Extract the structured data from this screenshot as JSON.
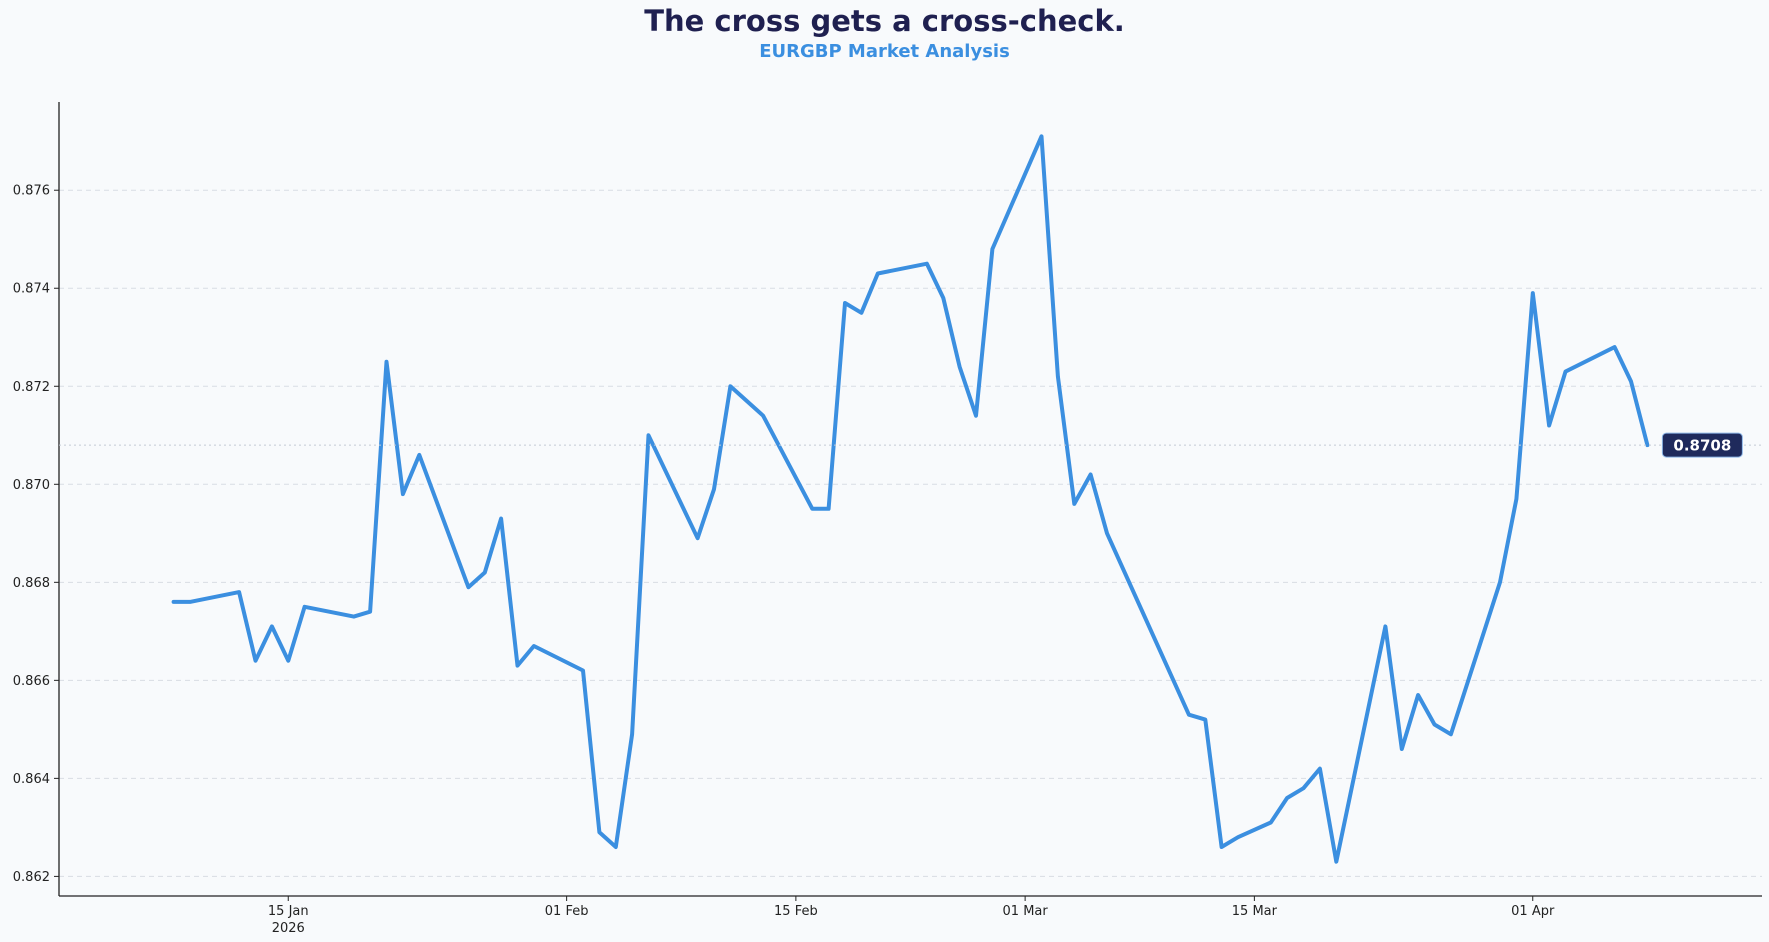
{
  "title": "The cross gets a cross-check.",
  "subtitle": "EURGBP Market Analysis",
  "colors": {
    "line": "#3b8fe0",
    "title": "#1f2050",
    "subtitle": "#3b8fe0",
    "grid": "#d7dde3",
    "badge_bg": "#1f2a5c",
    "badge_text": "#ffffff",
    "background": "#f8fafc"
  },
  "chart_data": {
    "type": "line",
    "title": "The cross gets a cross-check.",
    "subtitle": "EURGBP Market Analysis",
    "xlabel": "",
    "ylabel": "",
    "grid": "horizontal dashed",
    "ylim": [
      0.8616,
      0.8778
    ],
    "xlim": [
      "2026-01-01",
      "2026-04-15"
    ],
    "y_ticks": [
      "0.862",
      "0.864",
      "0.866",
      "0.868",
      "0.870",
      "0.872",
      "0.874",
      "0.876"
    ],
    "x_ticks": [
      {
        "date": "2026-01-15",
        "label": "15 Jan",
        "sublabel": "2026"
      },
      {
        "date": "2026-02-01",
        "label": "01 Feb",
        "sublabel": ""
      },
      {
        "date": "2026-02-15",
        "label": "15 Feb",
        "sublabel": ""
      },
      {
        "date": "2026-03-01",
        "label": "01 Mar",
        "sublabel": ""
      },
      {
        "date": "2026-03-15",
        "label": "15 Mar",
        "sublabel": ""
      },
      {
        "date": "2026-04-01",
        "label": "01 Apr",
        "sublabel": ""
      }
    ],
    "last_value_label": "0.8708",
    "series": [
      {
        "points": [
          [
            "2026-01-08",
            0.8676
          ],
          [
            "2026-01-09",
            0.8676
          ],
          [
            "2026-01-12",
            0.8678
          ],
          [
            "2026-01-13",
            0.8664
          ],
          [
            "2026-01-14",
            0.8671
          ],
          [
            "2026-01-15",
            0.8664
          ],
          [
            "2026-01-16",
            0.8675
          ],
          [
            "2026-01-19",
            0.8673
          ],
          [
            "2026-01-20",
            0.8674
          ],
          [
            "2026-01-21",
            0.8725
          ],
          [
            "2026-01-22",
            0.8698
          ],
          [
            "2026-01-23",
            0.8706
          ],
          [
            "2026-01-26",
            0.8679
          ],
          [
            "2026-01-27",
            0.8682
          ],
          [
            "2026-01-28",
            0.8693
          ],
          [
            "2026-01-29",
            0.8663
          ],
          [
            "2026-01-30",
            0.8667
          ],
          [
            "2026-02-02",
            0.8662
          ],
          [
            "2026-02-03",
            0.8629
          ],
          [
            "2026-02-04",
            0.8626
          ],
          [
            "2026-02-05",
            0.8649
          ],
          [
            "2026-02-06",
            0.871
          ],
          [
            "2026-02-09",
            0.8689
          ],
          [
            "2026-02-10",
            0.8699
          ],
          [
            "2026-02-11",
            0.872
          ],
          [
            "2026-02-12",
            0.8717
          ],
          [
            "2026-02-13",
            0.8714
          ],
          [
            "2026-02-16",
            0.8695
          ],
          [
            "2026-02-17",
            0.8695
          ],
          [
            "2026-02-18",
            0.8737
          ],
          [
            "2026-02-19",
            0.8735
          ],
          [
            "2026-02-20",
            0.8743
          ],
          [
            "2026-02-23",
            0.8745
          ],
          [
            "2026-02-24",
            0.8738
          ],
          [
            "2026-02-25",
            0.8724
          ],
          [
            "2026-02-26",
            0.8714
          ],
          [
            "2026-02-27",
            0.8748
          ],
          [
            "2026-03-02",
            0.8771
          ],
          [
            "2026-03-03",
            0.8722
          ],
          [
            "2026-03-04",
            0.8696
          ],
          [
            "2026-03-05",
            0.8702
          ],
          [
            "2026-03-06",
            0.869
          ],
          [
            "2026-03-11",
            0.8653
          ],
          [
            "2026-03-12",
            0.8652
          ],
          [
            "2026-03-13",
            0.8626
          ],
          [
            "2026-03-14",
            0.8628
          ],
          [
            "2026-03-16",
            0.8631
          ],
          [
            "2026-03-17",
            0.8636
          ],
          [
            "2026-03-18",
            0.8638
          ],
          [
            "2026-03-19",
            0.8642
          ],
          [
            "2026-03-20",
            0.8623
          ],
          [
            "2026-03-23",
            0.8671
          ],
          [
            "2026-03-24",
            0.8646
          ],
          [
            "2026-03-25",
            0.8657
          ],
          [
            "2026-03-26",
            0.8651
          ],
          [
            "2026-03-27",
            0.8649
          ],
          [
            "2026-03-30",
            0.868
          ],
          [
            "2026-03-31",
            0.8697
          ],
          [
            "2026-04-01",
            0.8739
          ],
          [
            "2026-04-02",
            0.8712
          ],
          [
            "2026-04-03",
            0.8723
          ],
          [
            "2026-04-06",
            0.8728
          ],
          [
            "2026-04-07",
            0.8721
          ],
          [
            "2026-04-08",
            0.8708
          ]
        ]
      }
    ]
  }
}
